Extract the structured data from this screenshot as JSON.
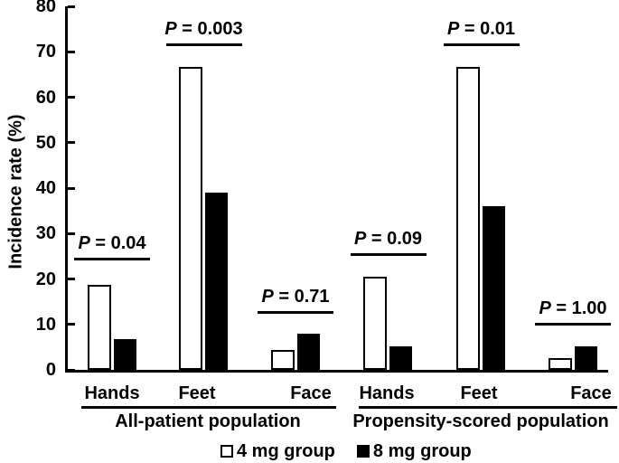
{
  "figure": {
    "background": "#ffffff",
    "colors": {
      "outline": "#000000",
      "fill_4mg": "#ffffff",
      "fill_8mg": "#000000"
    }
  },
  "chart_data": {
    "type": "bar",
    "title": "",
    "xlabel": "",
    "ylabel": "Incidence rate (%)",
    "ylim": [
      0,
      80
    ],
    "yticks": [
      0,
      10,
      20,
      30,
      40,
      50,
      60,
      70,
      80
    ],
    "grid": false,
    "legend_position": "bottom",
    "legend": [
      {
        "label": "4 mg group",
        "fill": "#ffffff"
      },
      {
        "label": "8 mg group",
        "fill": "#000000"
      }
    ],
    "panels": [
      {
        "label": "All-patient population",
        "categories": [
          "Hands",
          "Feet",
          "Face"
        ],
        "series": [
          {
            "name": "4 mg group",
            "values": [
              18.8,
              66.7,
              4.3
            ]
          },
          {
            "name": "8 mg group",
            "values": [
              6.7,
              39.0,
              7.9
            ]
          }
        ],
        "p_values": [
          {
            "label": "P = 0.04",
            "line_at": 24.0
          },
          {
            "label": "P = 0.003",
            "line_at": 71.3
          },
          {
            "label": "P = 0.71",
            "line_at": 12.3
          }
        ]
      },
      {
        "label": "Propensity-scored population",
        "categories": [
          "Hands",
          "Feet",
          "Face"
        ],
        "series": [
          {
            "name": "4 mg group",
            "values": [
              20.5,
              66.7,
              2.5
            ]
          },
          {
            "name": "8 mg group",
            "values": [
              5.1,
              36.0,
              5.1
            ]
          }
        ],
        "p_values": [
          {
            "label": "P = 0.09",
            "line_at": 25.0
          },
          {
            "label": "P = 0.01",
            "line_at": 71.2
          },
          {
            "label": "P = 1.00",
            "line_at": 9.8
          }
        ]
      }
    ]
  }
}
